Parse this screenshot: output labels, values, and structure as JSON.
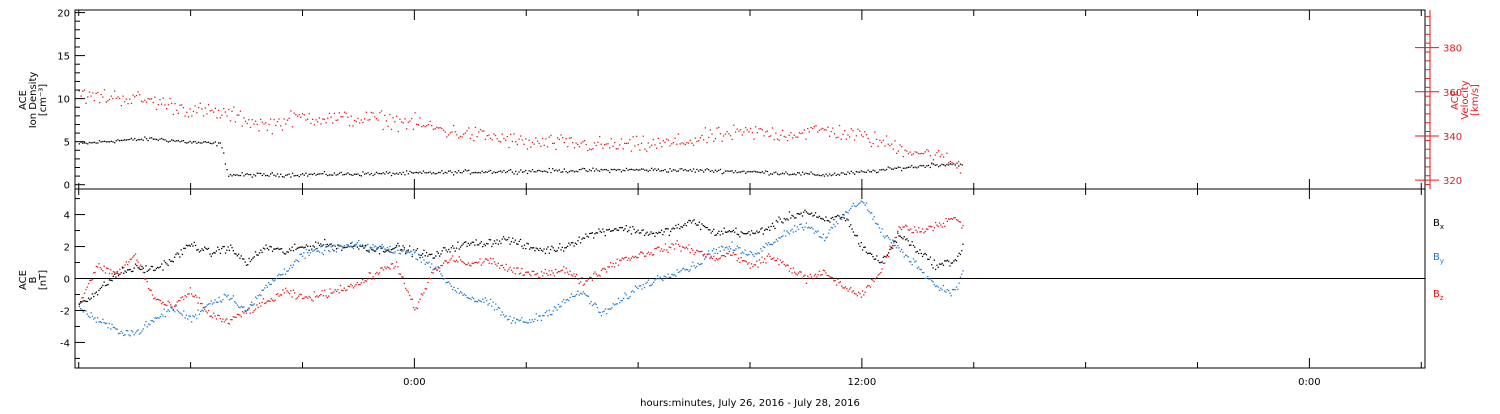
{
  "x_axis": {
    "label": "hours:minutes, July 26, 2016 - July 28, 2016",
    "ticks": [
      {
        "t": 0,
        "label": "0:00"
      },
      {
        "t": 12,
        "label": "12:00"
      },
      {
        "t": 24,
        "label": "0:00"
      }
    ],
    "range": [
      -9.1,
      27.1
    ]
  },
  "colors": {
    "density": "#000000",
    "velocity": "#e31a1c",
    "bx": "#000000",
    "by": "#1f78d1",
    "bz": "#e31a1c"
  },
  "chart_data": [
    {
      "type": "scatter",
      "panel": "top",
      "ylabel_left": [
        "ACE",
        "Ion Density",
        "[cm⁻³]"
      ],
      "ylabel_right": [
        "ACE",
        "Velocity",
        "[km/s]"
      ],
      "ylim_left": [
        -0.5,
        20.3
      ],
      "ylim_right": [
        316,
        397
      ],
      "yticks_left": [
        0,
        5,
        10,
        15,
        20
      ],
      "yticks_right": [
        320,
        340,
        360,
        380
      ],
      "series": [
        {
          "axis": "left",
          "color": "black",
          "x": [
            -9.0,
            -8.0,
            -7.0,
            -6.0,
            -5.2,
            -5.0,
            -4.0,
            -2.0,
            0.0,
            2.0,
            4.0,
            6.0,
            8.0,
            10.0,
            11.0,
            12.0,
            13.0,
            14.0,
            14.7
          ],
          "y": [
            4.8,
            5.2,
            5.4,
            5.0,
            4.8,
            1.2,
            1.2,
            1.3,
            1.4,
            1.6,
            1.7,
            1.8,
            1.7,
            1.4,
            1.2,
            1.5,
            2.0,
            2.4,
            2.5
          ]
        },
        {
          "axis": "right",
          "color": "red",
          "x": [
            -9.0,
            -8.0,
            -7.0,
            -6.0,
            -5.0,
            -4.0,
            -3.0,
            -2.0,
            -1.0,
            0.0,
            1.0,
            2.0,
            3.0,
            4.0,
            5.0,
            6.0,
            7.0,
            8.0,
            9.0,
            10.0,
            11.0,
            12.0,
            13.0,
            14.0,
            14.7
          ],
          "y": [
            358,
            358,
            356,
            352,
            350,
            345,
            349,
            348,
            348,
            346,
            342,
            340,
            337,
            337,
            336,
            336,
            337,
            340,
            342,
            341,
            343,
            340,
            335,
            331,
            326
          ]
        }
      ]
    },
    {
      "type": "scatter",
      "panel": "bottom",
      "ylabel_left": [
        "ACE",
        "B",
        "[nT]"
      ],
      "ylim": [
        -5.6,
        5.6
      ],
      "yticks": [
        -4,
        -2,
        0,
        2,
        4
      ],
      "legend": [
        "Bx",
        "By",
        "Bz"
      ],
      "series": [
        {
          "name": "Bx",
          "color": "black",
          "x": [
            -9.0,
            -8.5,
            -8.0,
            -7.5,
            -7.0,
            -6.5,
            -6.0,
            -5.5,
            -5.0,
            -4.5,
            -4.0,
            -3.5,
            -3.0,
            -2.5,
            -2.0,
            -1.5,
            -1.0,
            -0.5,
            0.0,
            0.5,
            1.0,
            1.5,
            2.0,
            2.5,
            3.0,
            3.5,
            4.0,
            4.5,
            5.0,
            5.5,
            6.0,
            6.5,
            7.0,
            7.5,
            8.0,
            8.5,
            9.0,
            9.5,
            10.0,
            10.5,
            11.0,
            11.5,
            12.0,
            12.5,
            13.0,
            13.5,
            14.0,
            14.5,
            14.7
          ],
          "y": [
            -1.5,
            -0.8,
            0.3,
            0.7,
            0.6,
            1.2,
            2.2,
            1.6,
            2.0,
            1.0,
            2.0,
            1.7,
            2.0,
            2.2,
            2.0,
            2.1,
            1.8,
            2.0,
            1.7,
            1.4,
            2.0,
            2.2,
            2.3,
            2.5,
            2.0,
            1.8,
            2.0,
            2.6,
            3.0,
            3.2,
            3.0,
            2.8,
            3.2,
            3.6,
            2.9,
            3.0,
            2.8,
            3.2,
            3.9,
            4.2,
            3.6,
            4.0,
            2.0,
            1.0,
            2.8,
            1.8,
            0.8,
            1.2,
            2.0
          ]
        },
        {
          "name": "By",
          "color": "blue",
          "x": [
            -9.0,
            -8.5,
            -8.0,
            -7.5,
            -7.0,
            -6.5,
            -6.0,
            -5.5,
            -5.0,
            -4.5,
            -4.0,
            -3.5,
            -3.0,
            -2.5,
            -2.0,
            -1.5,
            -1.0,
            -0.5,
            0.0,
            0.5,
            1.0,
            1.5,
            2.0,
            2.5,
            3.0,
            3.5,
            4.0,
            4.5,
            5.0,
            5.5,
            6.0,
            6.5,
            7.0,
            7.5,
            8.0,
            8.5,
            9.0,
            9.5,
            10.0,
            10.5,
            11.0,
            11.5,
            12.0,
            12.5,
            13.0,
            13.5,
            14.0,
            14.5,
            14.7
          ],
          "y": [
            -1.8,
            -2.6,
            -3.2,
            -3.4,
            -2.6,
            -1.8,
            -2.5,
            -1.5,
            -1.0,
            -2.0,
            -0.5,
            0.5,
            1.5,
            1.8,
            2.0,
            2.1,
            2.0,
            1.8,
            1.6,
            0.8,
            -0.5,
            -1.2,
            -1.5,
            -2.5,
            -2.7,
            -2.2,
            -1.4,
            -0.8,
            -2.2,
            -1.4,
            -0.5,
            0.0,
            0.5,
            0.8,
            1.8,
            2.0,
            1.5,
            2.2,
            3.0,
            3.4,
            2.6,
            4.0,
            5.0,
            3.0,
            1.8,
            0.8,
            -0.5,
            -0.8,
            0.5
          ]
        },
        {
          "name": "Bz",
          "color": "red",
          "x": [
            -9.0,
            -8.5,
            -8.0,
            -7.5,
            -7.0,
            -6.5,
            -6.0,
            -5.5,
            -5.0,
            -4.5,
            -4.0,
            -3.5,
            -3.0,
            -2.5,
            -2.0,
            -1.5,
            -1.0,
            -0.5,
            0.0,
            0.5,
            1.0,
            1.5,
            2.0,
            2.5,
            3.0,
            3.5,
            4.0,
            4.5,
            5.0,
            5.5,
            6.0,
            6.5,
            7.0,
            7.5,
            8.0,
            8.5,
            9.0,
            9.5,
            10.0,
            10.5,
            11.0,
            11.5,
            12.0,
            12.5,
            13.0,
            13.5,
            14.0,
            14.5,
            14.7
          ],
          "y": [
            -1.5,
            0.8,
            0.3,
            1.5,
            -1.2,
            -1.8,
            -0.8,
            -2.2,
            -2.7,
            -2.0,
            -1.5,
            -0.8,
            -1.2,
            -1.0,
            -0.6,
            -0.3,
            0.4,
            1.0,
            -2.0,
            0.5,
            1.3,
            0.9,
            1.2,
            0.6,
            0.3,
            0.4,
            0.6,
            -0.2,
            0.5,
            1.2,
            1.5,
            1.8,
            2.1,
            1.8,
            1.3,
            1.6,
            0.8,
            1.4,
            0.8,
            0.0,
            0.4,
            -0.5,
            -1.0,
            0.5,
            3.3,
            3.0,
            3.4,
            3.8,
            3.2
          ]
        }
      ]
    }
  ]
}
